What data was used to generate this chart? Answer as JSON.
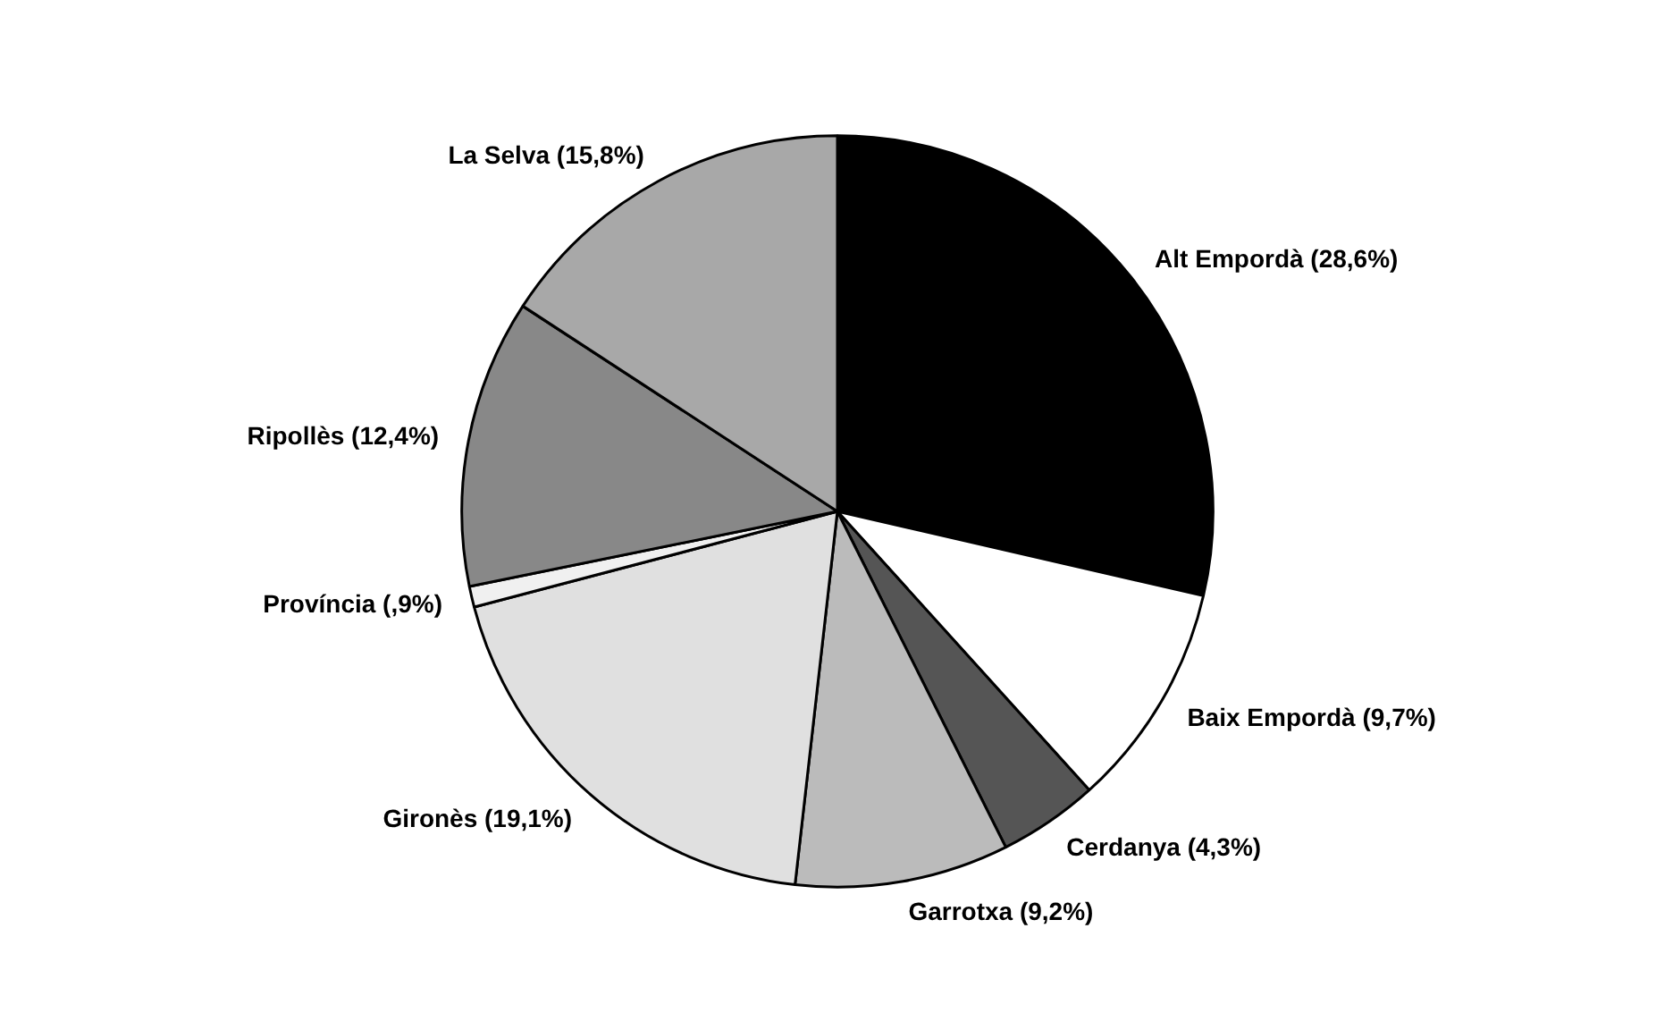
{
  "chart_data": {
    "type": "pie",
    "categories": [
      "Alt Empordà (28,6%)",
      "Baix Empordà (9,7%)",
      "Cerdanya (4,3%)",
      "Garrotxa (9,2%)",
      "Gironès (19,1%)",
      "Província (,9%)",
      "Ripollès (12,4%)",
      "La Selva (15,8%)"
    ],
    "values": [
      28.6,
      9.7,
      4.3,
      9.2,
      19.1,
      0.9,
      12.4,
      15.8
    ],
    "colors": [
      "#000000",
      "#ffffff",
      "#555555",
      "#bbbbbb",
      "#e0e0e0",
      "#f0f0f0",
      "#888888",
      "#a8a8a8"
    ]
  }
}
